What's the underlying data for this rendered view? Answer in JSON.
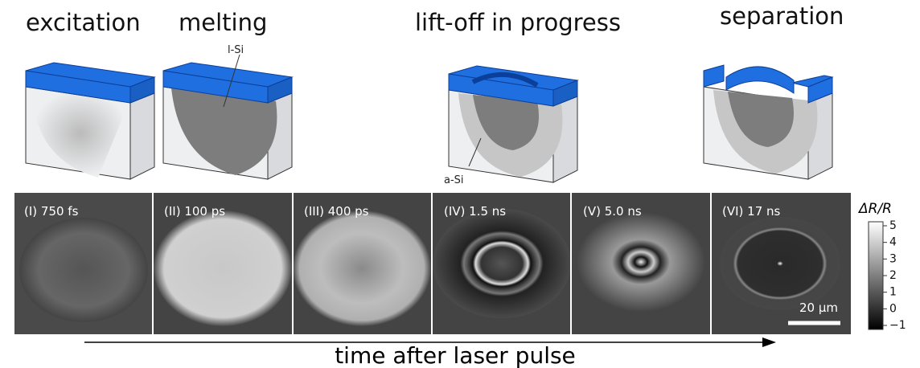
{
  "stages": [
    "excitation",
    "melting",
    "lift-off in progress",
    "separation"
  ],
  "annotations": {
    "liquid": "l-Si",
    "amorphous": "a-Si"
  },
  "panels": [
    "(I) 750 fs",
    "(II) 100 ps",
    "(III) 400 ps",
    "(IV) 1.5 ns",
    "(V) 5.0 ns",
    "(VI) 17 ns"
  ],
  "colorbar": {
    "label": "ΔR/R",
    "ticks": [
      "5",
      "4",
      "3",
      "2",
      "1",
      "0",
      "−1"
    ]
  },
  "scale_bar": "20 μm",
  "axis_label": "time after laser pulse"
}
